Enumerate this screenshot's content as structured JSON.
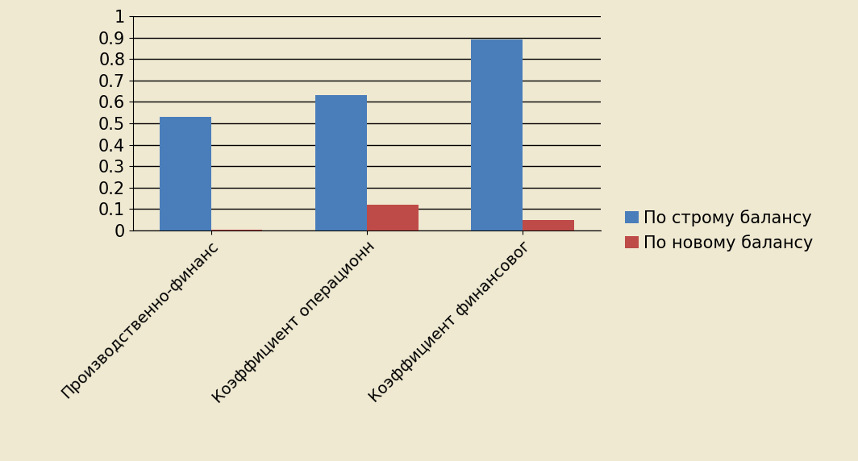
{
  "chart_data": {
    "type": "bar",
    "categories": [
      "Производственно-финанс",
      "Коэффициент операционн",
      "Коэффициент финансовог"
    ],
    "series": [
      {
        "name": "По строму балансу",
        "color": "#4a7ebb",
        "values": [
          0.53,
          0.63,
          0.89
        ]
      },
      {
        "name": "По новому балансу",
        "color": "#be4b48",
        "values": [
          0.005,
          0.12,
          0.05
        ]
      }
    ],
    "ylim": [
      0,
      1
    ],
    "yticks": [
      0,
      0.1,
      0.2,
      0.3,
      0.4,
      0.5,
      0.6,
      0.7,
      0.8,
      0.9,
      1
    ],
    "grid": true,
    "legend": "right"
  }
}
